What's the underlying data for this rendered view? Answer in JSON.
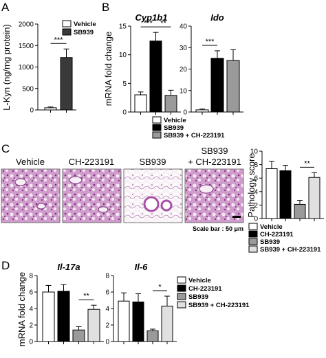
{
  "panel_labels": [
    "A",
    "B",
    "C",
    "D"
  ],
  "colors": {
    "vehicle": "#ffffff",
    "sb939": "#000000",
    "sb939_ch": "#9a9a9a",
    "ch": "#000000",
    "sb939_D": "#9a9a9a",
    "sb939_ch_D": "#e0e0e0",
    "sb939_A": "#3a3a3a"
  },
  "chart_data": [
    {
      "id": "A",
      "type": "bar",
      "ylabel": "L-Kyn (ng/mg protein)",
      "ylim": [
        0,
        2000
      ],
      "yticks": [
        "0",
        "500",
        "1000",
        "1500",
        "2000"
      ],
      "categories": [
        "Vehicle",
        "SB939"
      ],
      "values": [
        50,
        1220
      ],
      "errors": [
        20,
        200
      ],
      "legend": [
        "Vehicle",
        "SB939"
      ],
      "significance": [
        "***"
      ]
    },
    {
      "id": "B-Cyp1b1",
      "type": "bar",
      "title": "Cyp1b1",
      "ylabel": "mRNA fold change",
      "ylim": [
        0,
        15
      ],
      "yticks": [
        "0",
        "5",
        "10",
        "15"
      ],
      "categories": [
        "Vehicle",
        "SB939",
        "SB939 + CH-223191"
      ],
      "values": [
        3.0,
        12.4,
        2.9
      ],
      "errors": [
        0.5,
        1.5,
        0.9
      ],
      "significance": [
        "***",
        "**"
      ]
    },
    {
      "id": "B-Ido",
      "type": "bar",
      "title": "Ido",
      "ylim": [
        0,
        40
      ],
      "yticks": [
        "0",
        "10",
        "20",
        "30",
        "40"
      ],
      "categories": [
        "Vehicle",
        "SB939",
        "SB939 + CH-223191"
      ],
      "values": [
        1.0,
        25.0,
        24.0
      ],
      "errors": [
        0.4,
        3.5,
        5.0
      ],
      "significance": [
        "***"
      ],
      "legend": [
        "Vehicle",
        "SB939",
        "SB939 + CH-223191"
      ]
    },
    {
      "id": "C-pathology",
      "type": "bar",
      "ylabel": "Pathology score",
      "ylim": [
        0,
        10
      ],
      "yticks": [
        "0",
        "2",
        "4",
        "6",
        "8",
        "10"
      ],
      "categories": [
        "Vehicle",
        "CH-223191",
        "SB939",
        "SB939 + CH-223191"
      ],
      "values": [
        7.4,
        7.1,
        2.1,
        6.1
      ],
      "errors": [
        1.1,
        0.8,
        0.6,
        0.7
      ],
      "significance": [
        "**"
      ],
      "legend": [
        "Vehicle",
        "CH-223191",
        "SB939",
        "SB939 + CH-223191"
      ]
    },
    {
      "id": "D-Il17a",
      "type": "bar",
      "title": "Il-17a",
      "ylabel": "mRNA fold change",
      "ylim": [
        0,
        8
      ],
      "yticks": [
        "0",
        "2",
        "4",
        "6",
        "8"
      ],
      "categories": [
        "Vehicle",
        "CH-223191",
        "SB939",
        "SB939 + CH-223191"
      ],
      "values": [
        6.0,
        6.1,
        1.4,
        3.9
      ],
      "errors": [
        0.8,
        0.8,
        0.4,
        0.5
      ],
      "significance": [
        "**"
      ]
    },
    {
      "id": "D-Il6",
      "type": "bar",
      "title": "Il-6",
      "ylim": [
        0,
        8
      ],
      "yticks": [
        "0",
        "2",
        "4",
        "6",
        "8"
      ],
      "categories": [
        "Vehicle",
        "CH-223191",
        "SB939",
        "SB939 + CH-223191"
      ],
      "values": [
        4.9,
        4.8,
        1.3,
        4.3
      ],
      "errors": [
        1.0,
        1.0,
        0.2,
        1.2
      ],
      "significance": [
        "*"
      ],
      "legend": [
        "Vehicle",
        "CH-223191",
        "SB939",
        "SB939 + CH-223191"
      ]
    }
  ],
  "micrographs": {
    "labels": [
      "Vehicle",
      "CH-223191",
      "SB939",
      "SB939\n+ CH-223191"
    ],
    "label_line1": [
      "Vehicle",
      "CH-223191",
      "SB939",
      "SB939"
    ],
    "label_line2": [
      "",
      "",
      "",
      "+ CH-223191"
    ],
    "scale_bar": "Scale bar : 50 μm"
  }
}
